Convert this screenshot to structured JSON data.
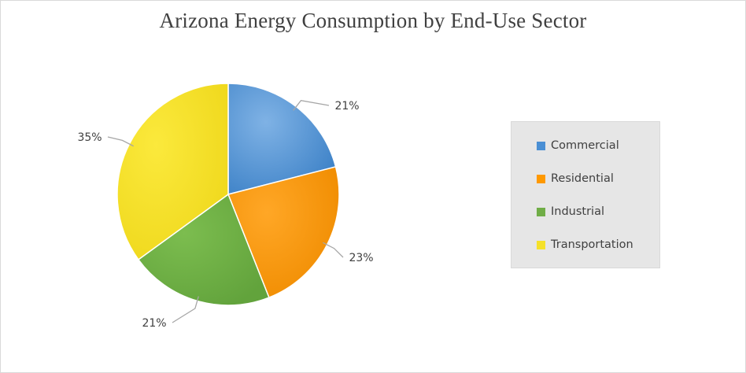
{
  "chart_data": {
    "type": "pie",
    "title": "Arizona Energy Consumption by End-Use Sector",
    "slices": [
      {
        "name": "Commercial",
        "value": 21,
        "label": "21%",
        "color": "#5b9bd5"
      },
      {
        "name": "Residential",
        "value": 23,
        "label": "23%",
        "color": "#ff9900"
      },
      {
        "name": "Industrial",
        "value": 21,
        "label": "21%",
        "color": "#70ad47"
      },
      {
        "name": "Transportation",
        "value": 35,
        "label": "35%",
        "color": "#f5e12a"
      }
    ],
    "legend_position": "right"
  }
}
